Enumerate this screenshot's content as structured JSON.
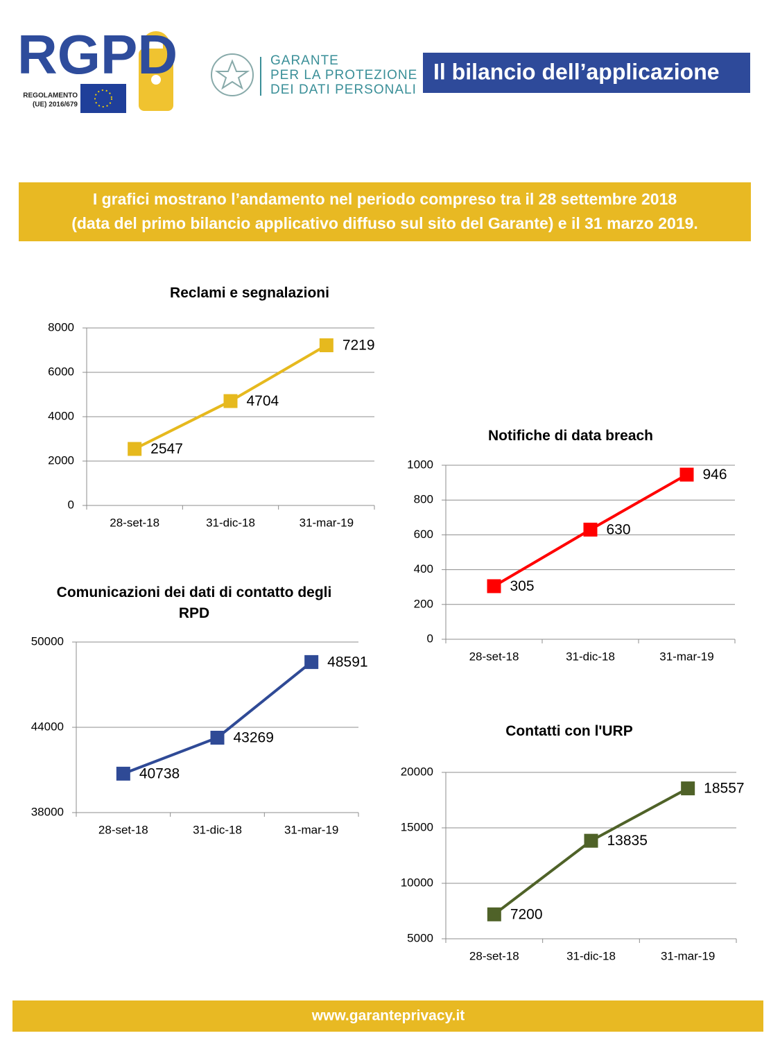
{
  "header": {
    "logo": "RGPD",
    "logo_lines": [
      "REGOLAMENTO",
      "(UE) 2016/679"
    ],
    "authority": [
      "GARANTE",
      "PER LA PROTEZIONE",
      "DEI DATI PERSONALI"
    ],
    "title": "Il bilancio dell’applicazione"
  },
  "intro": {
    "lines": [
      "I grafici mostrano l’andamento nel periodo compreso tra il 28 settembre 2018",
      "(data del primo bilancio applicativo diffuso sul sito del Garante) e il 31 marzo 2019."
    ]
  },
  "chart_data": [
    {
      "type": "line",
      "title": "Reclami e segnalazioni",
      "categories": [
        "28-set-18",
        "31-dic-18",
        "31-mar-19"
      ],
      "values": [
        2547,
        4704,
        7219
      ],
      "color": "#e6b91e",
      "ylim": [
        0,
        8000
      ],
      "yticks": [
        0,
        2000,
        4000,
        6000,
        8000
      ],
      "grid": true
    },
    {
      "type": "line",
      "title": "Notifiche di data breach",
      "categories": [
        "28-set-18",
        "31-dic-18",
        "31-mar-19"
      ],
      "values": [
        305,
        630,
        946
      ],
      "color": "#ff0000",
      "ylim": [
        0,
        1000
      ],
      "yticks": [
        0,
        200,
        400,
        600,
        800,
        1000
      ],
      "grid": true
    },
    {
      "type": "line",
      "title": "Comunicazioni dei dati di contatto degli RPD",
      "categories": [
        "28-set-18",
        "31-dic-18",
        "31-mar-19"
      ],
      "values": [
        40738,
        43269,
        48591
      ],
      "color": "#2f4a96",
      "ylim": [
        38000,
        50000
      ],
      "yticks": [
        38000,
        44000,
        50000
      ],
      "grid": true
    },
    {
      "type": "line",
      "title": "Contatti con l'URP",
      "categories": [
        "28-set-18",
        "31-dic-18",
        "31-mar-19"
      ],
      "values": [
        7200,
        13835,
        18557
      ],
      "color": "#4f6228",
      "ylim": [
        5000,
        20000
      ],
      "yticks": [
        5000,
        10000,
        15000,
        20000
      ],
      "grid": true
    }
  ],
  "footer": {
    "url": "www.garanteprivacy.it"
  }
}
